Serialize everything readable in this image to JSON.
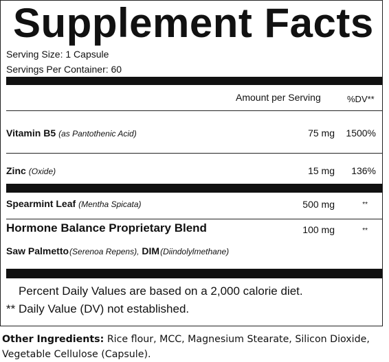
{
  "title": "Supplement Facts",
  "serving_size": "Serving Size: 1 Capsule",
  "servings_per_container": "Servings Per Container: 60",
  "header": {
    "amount": "Amount per Serving",
    "dv": "%DV**"
  },
  "rows": [
    {
      "name": "Vitamin B5",
      "detail": "(as Pantothenic Acid)",
      "amount": "75 mg",
      "dv": "1500%"
    },
    {
      "name": "Zinc",
      "detail": "(Oxide)",
      "amount": "15 mg",
      "dv": "136%"
    },
    {
      "name": "Spearmint Leaf",
      "detail": "(Mentha Spicata)",
      "amount": "500 mg",
      "dv": "**"
    },
    {
      "name": "Hormone Balance Proprietary Blend",
      "amount": "100 mg",
      "dv": "**"
    }
  ],
  "blend_ingredients": [
    {
      "name": "Saw Palmetto",
      "detail": "(Serenoa Repens),"
    },
    {
      "name": "DIM",
      "detail": "(Diindolylmethane)"
    }
  ],
  "footnotes": [
    "Percent Daily Values are based on a 2,000 calorie diet.",
    "** Daily Value (DV) not established."
  ],
  "other_ingredients": {
    "label": "Other Ingredients:",
    "text": "Rice flour, MCC, Magnesium Stearate, Silicon Dioxide, Vegetable Cellulose (Capsule)."
  }
}
